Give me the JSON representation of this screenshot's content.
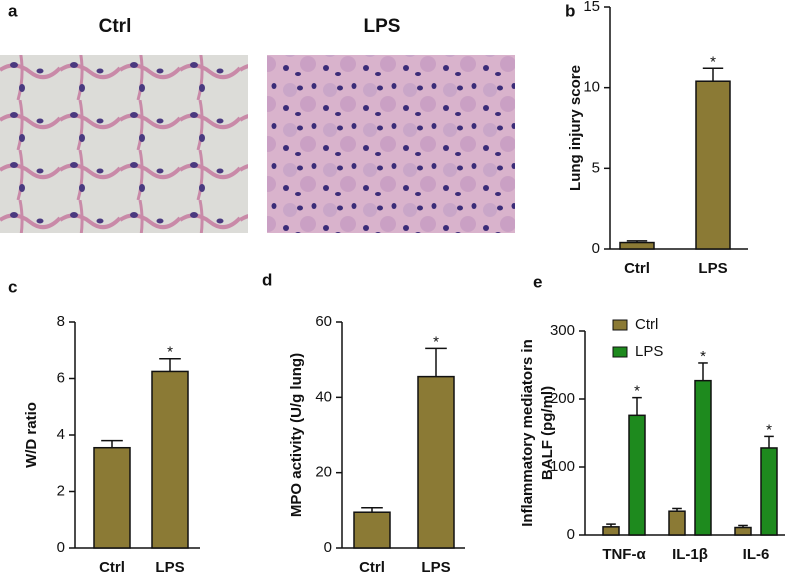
{
  "images": {
    "panel": "a",
    "titles": [
      "Ctrl",
      "LPS"
    ]
  },
  "chart_data": [
    {
      "type": "bar",
      "panel": "b",
      "ylabel": [
        "Lung injury score"
      ],
      "categories": [
        "Ctrl",
        "LPS"
      ],
      "values": [
        0.4,
        10.4
      ],
      "errors": [
        0.1,
        0.8
      ],
      "significance": [
        null,
        "*"
      ],
      "color": "#8b7a35",
      "ylim": [
        0,
        15
      ],
      "yticks": [
        0,
        5,
        10,
        15
      ]
    },
    {
      "type": "bar",
      "panel": "c",
      "ylabel": [
        "W/D ratio"
      ],
      "categories": [
        "Ctrl",
        "LPS"
      ],
      "values": [
        3.55,
        6.25
      ],
      "errors": [
        0.25,
        0.45
      ],
      "significance": [
        null,
        "*"
      ],
      "color": "#8b7a35",
      "ylim": [
        0,
        8
      ],
      "yticks": [
        0,
        2,
        4,
        6,
        8
      ]
    },
    {
      "type": "bar",
      "panel": "d",
      "ylabel": [
        "MPO activity (U/g lung)"
      ],
      "categories": [
        "Ctrl",
        "LPS"
      ],
      "values": [
        9.5,
        45.5
      ],
      "errors": [
        1.2,
        7.5
      ],
      "significance": [
        null,
        "*"
      ],
      "color": "#8b7a35",
      "ylim": [
        0,
        60
      ],
      "yticks": [
        0,
        20,
        40,
        60
      ]
    },
    {
      "type": "bar",
      "panel": "e",
      "ylabel": [
        "Inflammatory mediators in",
        "BALF (pg/ml)"
      ],
      "categories": [
        "TNF-α",
        "IL-1β",
        "IL-6"
      ],
      "series": [
        {
          "name": "Ctrl",
          "color": "#8b7a35",
          "values": [
            12,
            35,
            11
          ],
          "errors": [
            4,
            4,
            3
          ],
          "significance": [
            null,
            null,
            null
          ]
        },
        {
          "name": "LPS",
          "color": "#1e8a1e",
          "values": [
            176,
            227,
            128
          ],
          "errors": [
            26,
            26,
            17
          ],
          "significance": [
            "*",
            "*",
            "*"
          ]
        }
      ],
      "legend": "top-left",
      "ylim": [
        0,
        300
      ],
      "yticks": [
        0,
        100,
        200,
        300
      ]
    }
  ]
}
